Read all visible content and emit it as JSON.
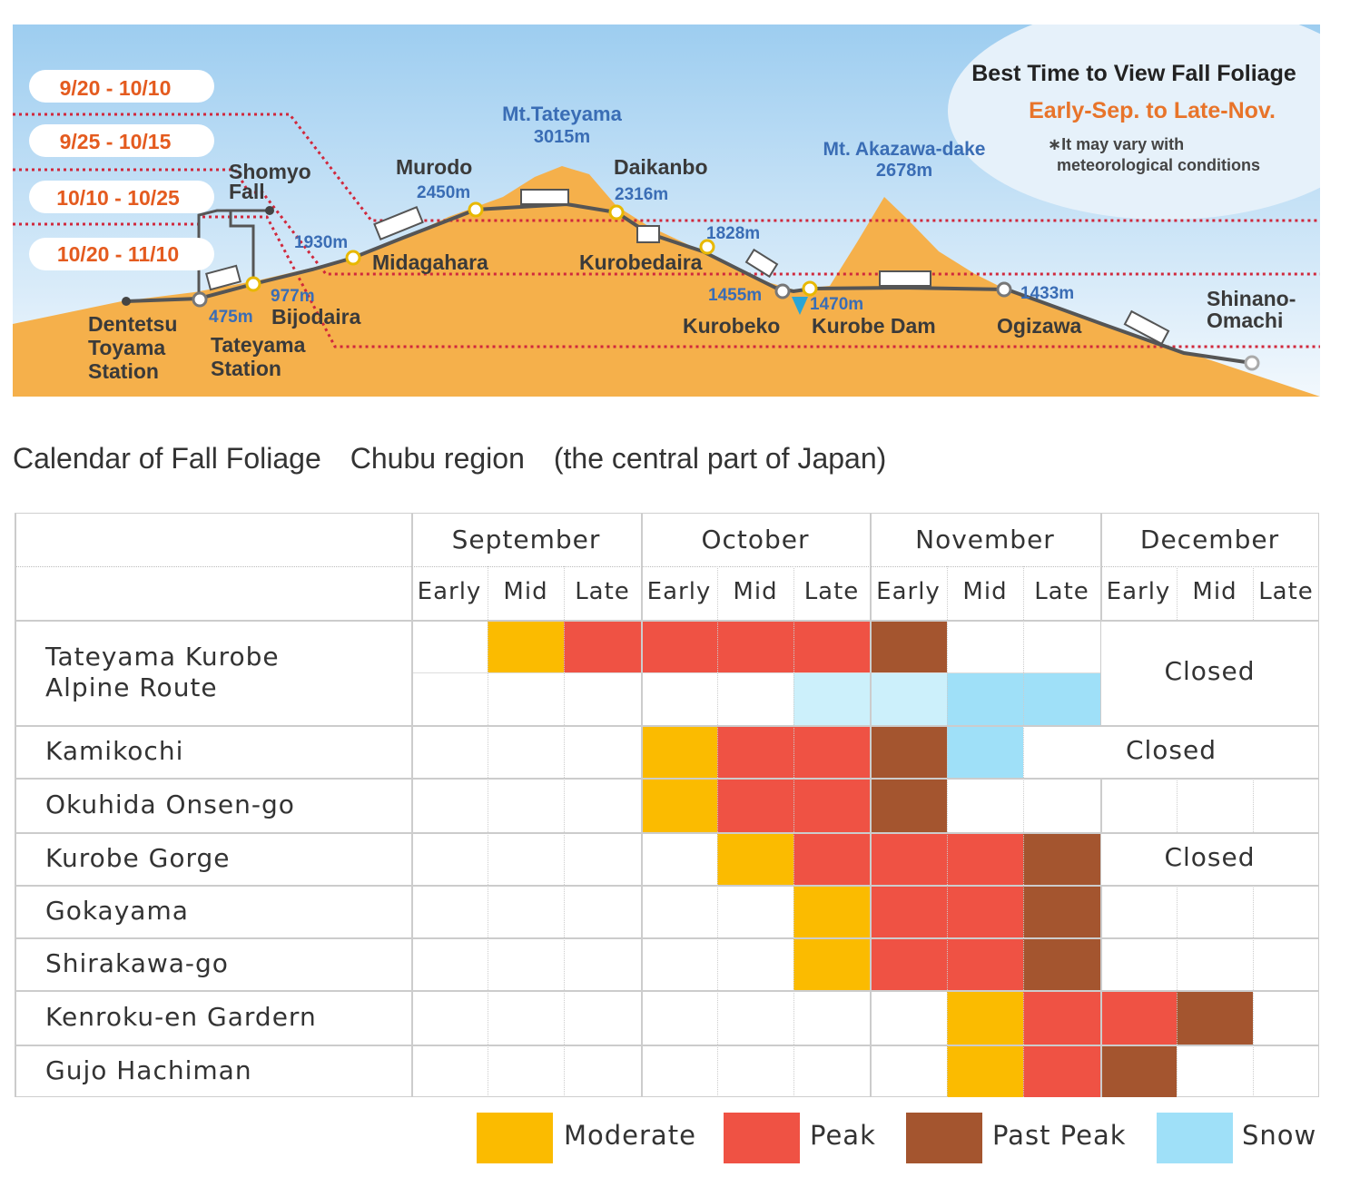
{
  "profile": {
    "best_time_title": "Best Time to View Fall Foliage",
    "best_time_range": "Early-Sep. to Late-Nov.",
    "note_line1": "∗It may vary with",
    "note_line2": "meteorological conditions",
    "date_bands": [
      "9/20 - 10/10",
      "9/25 - 10/15",
      "10/10 - 10/25",
      "10/20 - 11/10"
    ],
    "peaks": {
      "tateyama_name": "Mt.Tateyama",
      "tateyama_alt": "3015m",
      "akazawa_name": "Mt. Akazawa-dake",
      "akazawa_alt": "2678m"
    },
    "stations": {
      "dentetsu": [
        "Dentetsu",
        "Toyama",
        "Station"
      ],
      "tateyama_station": [
        "Tateyama",
        "Station"
      ],
      "tateyama_alt": "475m",
      "bijodaira": "Bijodaira",
      "bijodaira_alt": "977m",
      "shomyo": [
        "Shomyo",
        "Fall"
      ],
      "midagahara": "Midagahara",
      "midagahara_alt": "1930m",
      "murodo": "Murodo",
      "murodo_alt": "2450m",
      "daikanbo": "Daikanbo",
      "daikanbo_alt": "2316m",
      "kurobedaira": "Kurobedaira",
      "kurobedaira_alt": "1828m",
      "kurobeko": "Kurobeko",
      "kurobeko_alt": "1455m",
      "kurobe_dam": "Kurobe Dam",
      "kurobe_dam_alt": "1470m",
      "ogizawa": "Ogizawa",
      "ogizawa_alt": "1433m",
      "shinano": [
        "Shinano-",
        "Omachi"
      ]
    },
    "colors": {
      "mountain": "#f5b04b",
      "sky": "#cfe5f5",
      "band_line": "#d0283c",
      "station_ring": "#e8b800",
      "route_line": "#555555"
    }
  },
  "caption": "Calendar of Fall Foliage　Chubu region　(the central part of Japan)",
  "calendar": {
    "months": [
      "September",
      "October",
      "November",
      "December"
    ],
    "periods": [
      "Early",
      "Mid",
      "Late"
    ],
    "closed_label": "Closed",
    "rows": [
      {
        "name": "Tateyama Kurobe\nAlpine Route",
        "cells": [
          "",
          "M",
          "P",
          "P",
          "P",
          "P",
          "X",
          "",
          "",
          "",
          "",
          ""
        ],
        "snow_cells": [
          "",
          "",
          "",
          "",
          "",
          "S1",
          "S1",
          "S2",
          "S2",
          "",
          "",
          ""
        ],
        "closed_from": 9
      },
      {
        "name": "Kamikochi",
        "cells": [
          "",
          "",
          "",
          "M",
          "P",
          "P",
          "X",
          "S2",
          "",
          "",
          "",
          ""
        ],
        "closed_from": 8
      },
      {
        "name": "Okuhida Onsen-go",
        "cells": [
          "",
          "",
          "",
          "M",
          "P",
          "P",
          "X",
          "",
          "",
          "",
          "",
          ""
        ],
        "closed_from": null
      },
      {
        "name": "Kurobe Gorge",
        "cells": [
          "",
          "",
          "",
          "",
          "M",
          "P",
          "P",
          "P",
          "X",
          "",
          "",
          ""
        ],
        "closed_from": 9
      },
      {
        "name": "Gokayama",
        "cells": [
          "",
          "",
          "",
          "",
          "",
          "M",
          "P",
          "P",
          "X",
          "",
          "",
          ""
        ],
        "closed_from": null
      },
      {
        "name": "Shirakawa-go",
        "cells": [
          "",
          "",
          "",
          "",
          "",
          "M",
          "P",
          "P",
          "X",
          "",
          "",
          ""
        ],
        "closed_from": null
      },
      {
        "name": "Kenroku-en Gardern",
        "cells": [
          "",
          "",
          "",
          "",
          "",
          "",
          "",
          "M",
          "P",
          "P",
          "X",
          ""
        ],
        "closed_from": null
      },
      {
        "name": "Gujo Hachiman",
        "cells": [
          "",
          "",
          "",
          "",
          "",
          "",
          "",
          "M",
          "P",
          "X",
          "",
          ""
        ],
        "closed_from": null
      }
    ]
  },
  "legend": [
    {
      "label": "Moderate",
      "color": "#fbbb00"
    },
    {
      "label": "Peak",
      "color": "#ef5244"
    },
    {
      "label": "Past Peak",
      "color": "#a4552f"
    },
    {
      "label": "Snow",
      "color": "#9fe0f8"
    }
  ],
  "colors": {
    "M": "#fbbb00",
    "P": "#ef5244",
    "X": "#a4552f",
    "S1": "#ccf0fb",
    "S2": "#9fe0f8"
  }
}
